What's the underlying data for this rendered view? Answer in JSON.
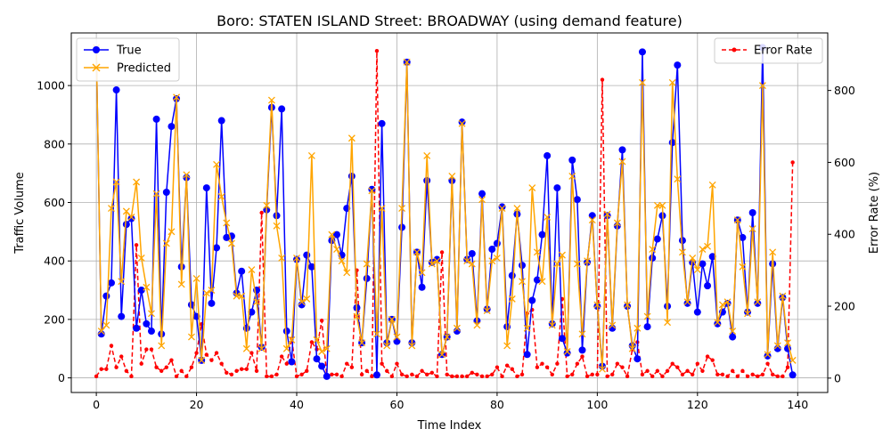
{
  "chart_data": {
    "type": "line",
    "title": "Boro: STATEN ISLAND Street: BROADWAY (using demand feature)",
    "xlabel": "Time Index",
    "ylabel": "Traffic Volume",
    "ylabel_right": "Error Rate (%)",
    "xlim": [
      -5,
      146
    ],
    "ylim": [
      -50,
      1180
    ],
    "ylim_right": [
      -40,
      960
    ],
    "x_ticks": [
      0,
      20,
      40,
      60,
      80,
      100,
      120,
      140
    ],
    "y_ticks": [
      0,
      200,
      400,
      600,
      800,
      1000
    ],
    "y_ticks_right": [
      0,
      200,
      400,
      600,
      800
    ],
    "grid": true,
    "legend_left": "upper-left",
    "legend_right": "upper-right",
    "colors": {
      "true": "#0000ff",
      "predicted": "#ffa500",
      "error": "#ff0000"
    },
    "series": [
      {
        "name": "True",
        "axis": "left",
        "marker": "circle",
        "line": "solid",
        "values": [
          1125,
          150,
          280,
          325,
          985,
          210,
          525,
          545,
          170,
          300,
          185,
          160,
          885,
          150,
          635,
          860,
          955,
          380,
          685,
          250,
          210,
          60,
          650,
          255,
          445,
          880,
          480,
          485,
          290,
          365,
          170,
          225,
          300,
          105,
          575,
          925,
          555,
          920,
          160,
          55,
          405,
          250,
          420,
          380,
          65,
          40,
          5,
          470,
          490,
          420,
          580,
          690,
          240,
          120,
          340,
          645,
          10,
          870,
          120,
          200,
          125,
          515,
          1080,
          120,
          430,
          310,
          675,
          395,
          405,
          80,
          140,
          675,
          160,
          875,
          405,
          425,
          195,
          630,
          235,
          440,
          460,
          585,
          175,
          350,
          560,
          385,
          80,
          265,
          335,
          490,
          760,
          185,
          650,
          135,
          85,
          745,
          610,
          95,
          395,
          555,
          245,
          40,
          555,
          170,
          520,
          780,
          245,
          110,
          65,
          1115,
          175,
          410,
          475,
          555,
          245,
          805,
          1070,
          470,
          255,
          395,
          225,
          390,
          315,
          415,
          185,
          225,
          255,
          140,
          540,
          480,
          225,
          565,
          255,
          1130,
          75,
          390,
          100,
          275,
          100,
          10
        ]
      },
      {
        "name": "Predicted",
        "axis": "left",
        "marker": "x",
        "line": "solid",
        "values": [
          1130,
          160,
          180,
          580,
          670,
          330,
          570,
          550,
          670,
          410,
          310,
          220,
          630,
          110,
          460,
          500,
          960,
          320,
          695,
          140,
          340,
          60,
          290,
          300,
          730,
          620,
          530,
          460,
          280,
          280,
          100,
          370,
          260,
          100,
          590,
          950,
          520,
          410,
          100,
          130,
          410,
          260,
          270,
          760,
          130,
          90,
          100,
          490,
          440,
          400,
          360,
          820,
          210,
          120,
          390,
          640,
          150,
          580,
          110,
          200,
          140,
          580,
          1080,
          110,
          430,
          360,
          760,
          390,
          400,
          80,
          140,
          690,
          170,
          870,
          400,
          390,
          180,
          610,
          230,
          400,
          410,
          580,
          110,
          270,
          580,
          330,
          170,
          650,
          430,
          330,
          550,
          180,
          390,
          420,
          90,
          690,
          390,
          150,
          400,
          540,
          250,
          30,
          560,
          180,
          530,
          740,
          250,
          100,
          170,
          1010,
          210,
          440,
          590,
          590,
          190,
          1010,
          680,
          430,
          260,
          410,
          370,
          440,
          450,
          660,
          190,
          250,
          260,
          160,
          540,
          380,
          220,
          510,
          260,
          1000,
          80,
          430,
          110,
          280,
          120,
          60
        ]
      },
      {
        "name": "Error Rate",
        "axis": "right",
        "marker": "point",
        "line": "dashed",
        "values": [
          5,
          25,
          25,
          90,
          30,
          60,
          20,
          5,
          370,
          40,
          80,
          80,
          30,
          20,
          30,
          50,
          5,
          20,
          5,
          30,
          70,
          150,
          65,
          50,
          70,
          40,
          15,
          10,
          20,
          25,
          25,
          70,
          20,
          460,
          5,
          5,
          10,
          60,
          40,
          110,
          5,
          10,
          20,
          100,
          80,
          160,
          5,
          10,
          10,
          5,
          40,
          30,
          300,
          10,
          20,
          5,
          910,
          40,
          20,
          5,
          40,
          10,
          5,
          10,
          5,
          20,
          10,
          15,
          5,
          350,
          10,
          5,
          5,
          5,
          5,
          15,
          10,
          5,
          5,
          10,
          30,
          5,
          35,
          25,
          5,
          10,
          180,
          190,
          30,
          40,
          30,
          10,
          40,
          220,
          5,
          10,
          40,
          60,
          5,
          10,
          10,
          830,
          5,
          10,
          40,
          30,
          5,
          80,
          100,
          10,
          20,
          5,
          20,
          5,
          20,
          40,
          30,
          10,
          20,
          10,
          40,
          20,
          60,
          50,
          10,
          10,
          5,
          20,
          5,
          20,
          5,
          10,
          5,
          10,
          40,
          10,
          5,
          5,
          30,
          600
        ]
      }
    ]
  }
}
